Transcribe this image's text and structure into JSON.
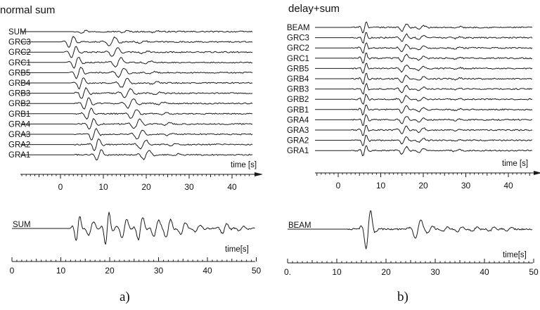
{
  "panels": [
    {
      "id": "a",
      "title": "normal sum",
      "trace_labels": [
        "SUM",
        "GRC3",
        "GRC2",
        "GRC1",
        "GRB5",
        "GRB4",
        "GRB3",
        "GRB2",
        "GRB1",
        "GRA4",
        "GRA3",
        "GRA2",
        "GRA1"
      ],
      "top_axis": {
        "label": "time [s]",
        "tick_values": [
          0,
          10,
          20,
          30,
          40
        ],
        "tick_labels": [
          "0",
          "10",
          "20",
          "30",
          "40"
        ],
        "range": [
          -10,
          45
        ]
      },
      "bottom_trace_label": "SUM",
      "bottom_axis": {
        "label": "time[s]",
        "tick_values": [
          0,
          10,
          20,
          30,
          40,
          50
        ],
        "tick_labels": [
          "0",
          "10",
          "20",
          "30",
          "40",
          "50"
        ],
        "range": [
          0,
          50
        ]
      },
      "caption": "a)"
    },
    {
      "id": "b",
      "title": "delay+sum",
      "trace_labels": [
        "BEAM",
        "GRC3",
        "GRC2",
        "GRC1",
        "GRB5",
        "GRB4",
        "GRB3",
        "GRB2",
        "GRB1",
        "GRA4",
        "GRA3",
        "GRA2",
        "GRA1"
      ],
      "top_axis": {
        "label": "time [s]",
        "tick_values": [
          0,
          10,
          20,
          30,
          40
        ],
        "tick_labels": [
          "0",
          "10",
          "20",
          "30",
          "40"
        ],
        "range": [
          -10,
          45
        ]
      },
      "bottom_trace_label": "BEAM",
      "bottom_axis": {
        "label": "time[s]",
        "tick_values": [
          0,
          10,
          20,
          30,
          40,
          50
        ],
        "tick_labels": [
          "0.",
          "10",
          "20",
          "30",
          "40",
          "50"
        ],
        "range": [
          0,
          50
        ]
      },
      "caption": "b)"
    }
  ]
}
